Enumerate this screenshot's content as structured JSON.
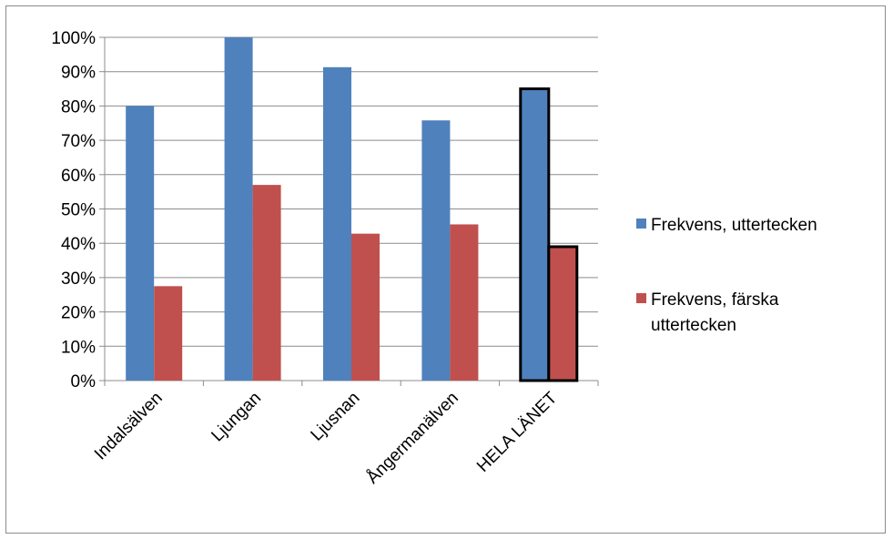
{
  "chart_data": {
    "type": "bar",
    "categories": [
      "Indalsälven",
      "Ljungan",
      "Ljusnan",
      "Ångermanälven",
      "HELA LÄNET"
    ],
    "series": [
      {
        "name": "Frekvens, uttertecken",
        "values": [
          0.8,
          1.0,
          0.913,
          0.758,
          0.85
        ],
        "color": "#4F81BD"
      },
      {
        "name": "Frekvens, färska uttertecken",
        "values": [
          0.275,
          0.57,
          0.428,
          0.455,
          0.39
        ],
        "color": "#C0504D"
      }
    ],
    "highlighted_category": "HELA LÄNET",
    "ylim": [
      0,
      1
    ],
    "yticks": [
      "0%",
      "10%",
      "20%",
      "30%",
      "40%",
      "50%",
      "60%",
      "70%",
      "80%",
      "90%",
      "100%"
    ],
    "grid": true,
    "legend_position": "right",
    "legend": [
      {
        "lines": [
          "Frekvens, uttertecken"
        ],
        "color": "#4F81BD"
      },
      {
        "lines": [
          "Frekvens, färska",
          "uttertecken"
        ],
        "color": "#C0504D"
      }
    ]
  }
}
